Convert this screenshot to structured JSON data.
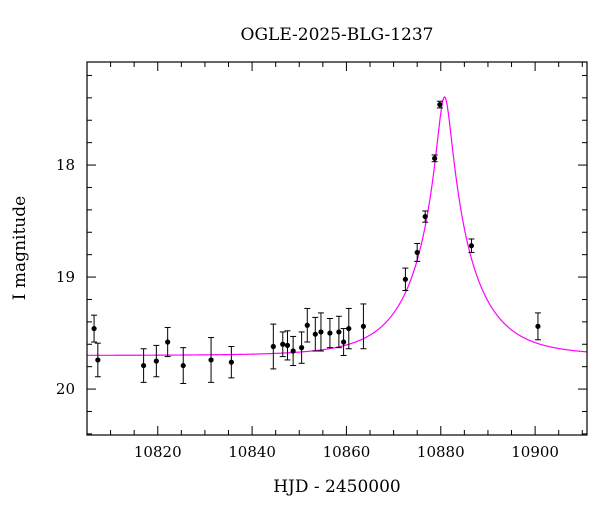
{
  "chart_data": {
    "type": "scatter",
    "title": "OGLE-2025-BLG-1237",
    "xlabel": "HJD - 2450000",
    "ylabel": "I magnitude",
    "xlim": [
      10805,
      10911
    ],
    "ylim": [
      20.41,
      17.08
    ],
    "y_inverted": true,
    "x_major_ticks": [
      10820,
      10840,
      10860,
      10880,
      10900
    ],
    "x_tick_labels": [
      "10820",
      "10840",
      "10860",
      "10880",
      "10900"
    ],
    "x_minor_step": 5,
    "y_major_ticks": [
      18,
      19,
      20
    ],
    "y_tick_labels": [
      "18",
      "19",
      "20"
    ],
    "y_minor_step": 0.2,
    "grid": false,
    "legend": "none",
    "colors": {
      "data": "#000000",
      "model": "#ff00ff"
    },
    "series": [
      {
        "kind": "points",
        "points": [
          {
            "x": 10806.5,
            "y": 19.46,
            "err": 0.12
          },
          {
            "x": 10807.3,
            "y": 19.74,
            "err": 0.15
          },
          {
            "x": 10817.0,
            "y": 19.79,
            "err": 0.15
          },
          {
            "x": 10819.7,
            "y": 19.75,
            "err": 0.14
          },
          {
            "x": 10822.1,
            "y": 19.58,
            "err": 0.13
          },
          {
            "x": 10825.4,
            "y": 19.79,
            "err": 0.16
          },
          {
            "x": 10831.3,
            "y": 19.74,
            "err": 0.2
          },
          {
            "x": 10835.6,
            "y": 19.76,
            "err": 0.14
          },
          {
            "x": 10844.5,
            "y": 19.62,
            "err": 0.2
          },
          {
            "x": 10846.5,
            "y": 19.6,
            "err": 0.11
          },
          {
            "x": 10847.5,
            "y": 19.61,
            "err": 0.13
          },
          {
            "x": 10848.7,
            "y": 19.66,
            "err": 0.13
          },
          {
            "x": 10850.5,
            "y": 19.63,
            "err": 0.14
          },
          {
            "x": 10851.7,
            "y": 19.43,
            "err": 0.15
          },
          {
            "x": 10853.4,
            "y": 19.51,
            "err": 0.15
          },
          {
            "x": 10854.6,
            "y": 19.49,
            "err": 0.17
          },
          {
            "x": 10856.5,
            "y": 19.5,
            "err": 0.13
          },
          {
            "x": 10858.4,
            "y": 19.49,
            "err": 0.14
          },
          {
            "x": 10859.4,
            "y": 19.58,
            "err": 0.12
          },
          {
            "x": 10860.5,
            "y": 19.46,
            "err": 0.18
          },
          {
            "x": 10863.6,
            "y": 19.44,
            "err": 0.2
          },
          {
            "x": 10872.5,
            "y": 19.02,
            "err": 0.1
          },
          {
            "x": 10875.0,
            "y": 18.78,
            "err": 0.08
          },
          {
            "x": 10876.7,
            "y": 18.46,
            "err": 0.05
          },
          {
            "x": 10878.7,
            "y": 17.94,
            "err": 0.03
          },
          {
            "x": 10879.8,
            "y": 17.46,
            "err": 0.03
          },
          {
            "x": 10886.5,
            "y": 18.72,
            "err": 0.06
          },
          {
            "x": 10900.6,
            "y": 19.44,
            "err": 0.12
          }
        ]
      },
      {
        "kind": "model",
        "function": "paczynski",
        "t0": 10880.8,
        "u0": 0.12,
        "tE": 12.0,
        "baseline_mag": 19.7,
        "sample_range": [
          10805,
          10911
        ]
      }
    ]
  }
}
